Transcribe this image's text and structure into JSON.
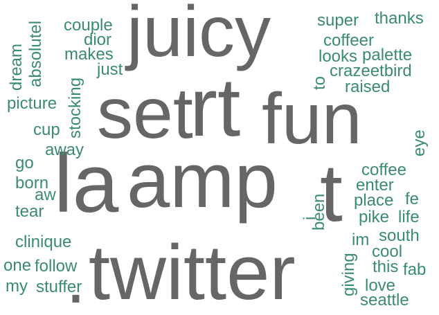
{
  "colors": {
    "large_words": "#666666",
    "small_words": "#3a8c6e"
  },
  "words": {
    "juicy": "juicy",
    "set": "set",
    "rt": "rt",
    "fun": "fun",
    "la": "la",
    "amp": "amp",
    "t": "t",
    "twitter": "twitter",
    "dot": ".",
    "couple": "couple",
    "dior": "dior",
    "makes": "makes",
    "just": "just",
    "absolutel": "absolutel",
    "dream": "dream",
    "picture": "picture",
    "stocking": "stocking",
    "cup": "cup",
    "away": "away",
    "go": "go",
    "born": "born",
    "aw": "aw",
    "tear": "tear",
    "clinique": "clinique",
    "one": "one",
    "follow": "follow",
    "my": "my",
    "stuffer": "stuffer",
    "super": "super",
    "thanks": "thanks",
    "coffeer": "coffeer",
    "looks": "looks",
    "palette": "palette",
    "to": "to",
    "crazeetbird": "crazeetbird",
    "raised": "raised",
    "eye": "eye",
    "coffee": "coffee",
    "enter": "enter",
    "place": "place",
    "fe": "fe",
    "pike": "pike",
    "life": "life",
    "been": "been",
    "i": "i",
    "south": "south",
    "im": "im",
    "cool": "cool",
    "this": "this",
    "fab": "fab",
    "giving": "giving",
    "love": "love",
    "seattle": "seattle"
  }
}
